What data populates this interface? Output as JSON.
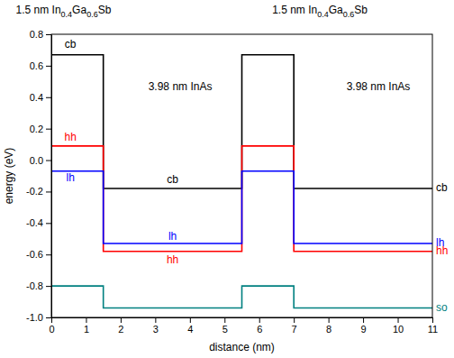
{
  "chart_data": {
    "type": "line",
    "x_label": "distance (nm)",
    "y_label": "energy (eV)",
    "x": [
      0,
      1.5,
      1.5,
      5.5,
      5.5,
      7,
      7,
      11
    ],
    "series": [
      {
        "name": "cb",
        "color": "#000000",
        "values": [
          0.67,
          0.67,
          -0.18,
          -0.18,
          0.67,
          0.67,
          -0.18,
          -0.18
        ]
      },
      {
        "name": "hh",
        "color": "#ff0000",
        "values": [
          0.09,
          0.09,
          -0.58,
          -0.58,
          0.09,
          0.09,
          -0.58,
          -0.58
        ]
      },
      {
        "name": "lh",
        "color": "#0000ff",
        "values": [
          -0.07,
          -0.07,
          -0.53,
          -0.53,
          -0.07,
          -0.07,
          -0.53,
          -0.53
        ]
      },
      {
        "name": "so",
        "color": "#008080",
        "values": [
          -0.8,
          -0.8,
          -0.94,
          -0.94,
          -0.8,
          -0.8,
          -0.94,
          -0.94
        ]
      }
    ],
    "xlim": [
      0,
      11
    ],
    "xticks": [
      0,
      1,
      2,
      3,
      4,
      5,
      6,
      7,
      8,
      9,
      10,
      11
    ],
    "ylim": [
      -1.0,
      0.8
    ],
    "yticks": [
      {
        "value": -1.0,
        "label": "-1.0"
      },
      -0.8,
      -0.6,
      -0.4,
      -0.2,
      {
        "value": 0,
        "label": "0.0"
      },
      0.2,
      0.4,
      0.6,
      0.8
    ],
    "grid": false,
    "annotations": [
      {
        "text": "1.5 nm In0.4Ga0.6Sb",
        "x": 0.35,
        "y": 0.95
      },
      {
        "text": "1.5 nm In0.4Ga0.6Sb",
        "x": 7.75,
        "y": 0.95
      },
      {
        "text": "3.98 nm InAs",
        "x": 3.72,
        "y": 0.46
      },
      {
        "text": "3.98 nm InAs",
        "x": 9.44,
        "y": 0.46
      },
      {
        "text": "cb",
        "x": 0.55,
        "y": 0.73
      },
      {
        "text": "hh",
        "x": 0.55,
        "y": 0.14
      },
      {
        "text": "lh",
        "x": 0.55,
        "y": -0.12
      },
      {
        "text": "cb",
        "x": 3.5,
        "y": -0.13
      },
      {
        "text": "lh",
        "x": 3.5,
        "y": -0.49
      },
      {
        "text": "hh",
        "x": 3.5,
        "y": -0.64
      }
    ]
  }
}
